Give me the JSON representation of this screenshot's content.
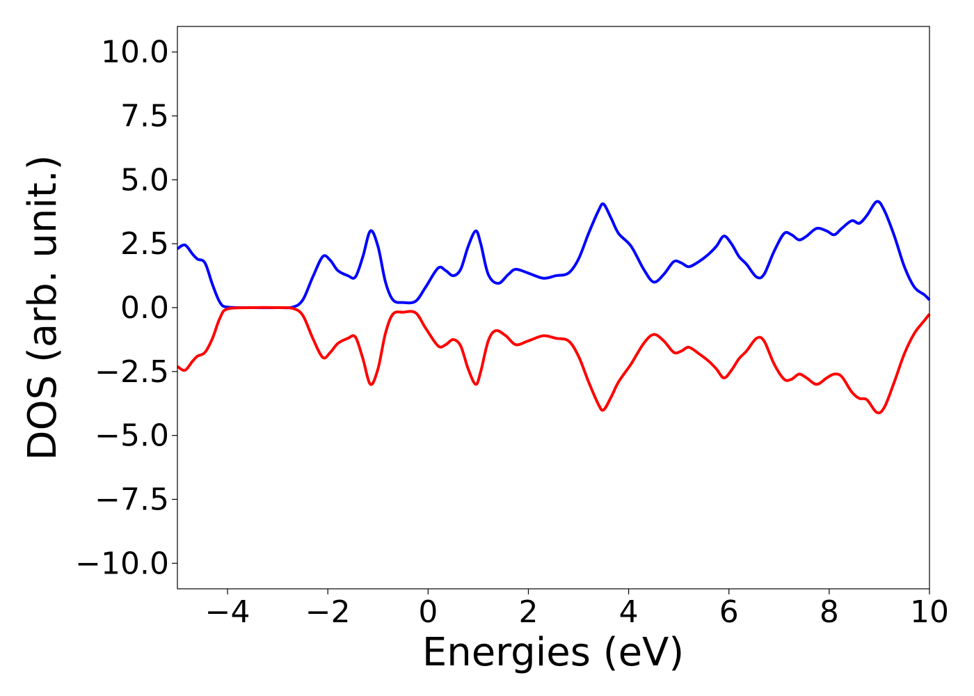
{
  "chart_data": {
    "type": "line",
    "title": "",
    "xlabel": "Energies (eV)",
    "ylabel": "DOS (arb. unit.)",
    "xlim": [
      -5,
      10
    ],
    "ylim": [
      -11,
      11
    ],
    "grid": false,
    "x_ticks": [
      -4,
      -2,
      0,
      2,
      4,
      6,
      8,
      10
    ],
    "x_tick_labels": [
      "−4",
      "−2",
      "0",
      "2",
      "4",
      "6",
      "8",
      "10"
    ],
    "y_ticks": [
      10,
      7.5,
      5,
      2.5,
      0,
      -2.5,
      -5,
      -7.5,
      -10
    ],
    "y_tick_labels": [
      "10.0",
      "7.5",
      "5.0",
      "2.5",
      "0.0",
      "−2.5",
      "−5.0",
      "−7.5",
      "−10.0"
    ],
    "series": [
      {
        "color": "#0000ff",
        "points": [
          [
            -5.0,
            2.3
          ],
          [
            -4.85,
            2.45
          ],
          [
            -4.7,
            2.1
          ],
          [
            -4.6,
            1.9
          ],
          [
            -4.45,
            1.75
          ],
          [
            -4.3,
            0.9
          ],
          [
            -4.15,
            0.2
          ],
          [
            -4.0,
            0.02
          ],
          [
            -3.5,
            0.0
          ],
          [
            -3.0,
            0.0
          ],
          [
            -2.7,
            0.02
          ],
          [
            -2.5,
            0.3
          ],
          [
            -2.3,
            1.2
          ],
          [
            -2.1,
            2.0
          ],
          [
            -1.95,
            1.85
          ],
          [
            -1.8,
            1.45
          ],
          [
            -1.6,
            1.25
          ],
          [
            -1.45,
            1.2
          ],
          [
            -1.3,
            2.0
          ],
          [
            -1.15,
            3.0
          ],
          [
            -1.0,
            2.4
          ],
          [
            -0.85,
            1.0
          ],
          [
            -0.7,
            0.3
          ],
          [
            -0.5,
            0.2
          ],
          [
            -0.25,
            0.25
          ],
          [
            -0.05,
            0.8
          ],
          [
            0.2,
            1.55
          ],
          [
            0.35,
            1.45
          ],
          [
            0.5,
            1.25
          ],
          [
            0.65,
            1.5
          ],
          [
            0.8,
            2.4
          ],
          [
            0.95,
            3.0
          ],
          [
            1.05,
            2.5
          ],
          [
            1.2,
            1.3
          ],
          [
            1.4,
            0.95
          ],
          [
            1.6,
            1.3
          ],
          [
            1.75,
            1.5
          ],
          [
            2.0,
            1.35
          ],
          [
            2.3,
            1.15
          ],
          [
            2.55,
            1.25
          ],
          [
            2.8,
            1.35
          ],
          [
            3.0,
            1.9
          ],
          [
            3.2,
            2.9
          ],
          [
            3.4,
            3.8
          ],
          [
            3.5,
            4.05
          ],
          [
            3.65,
            3.5
          ],
          [
            3.8,
            2.9
          ],
          [
            4.05,
            2.4
          ],
          [
            4.3,
            1.5
          ],
          [
            4.5,
            1.0
          ],
          [
            4.7,
            1.3
          ],
          [
            4.9,
            1.8
          ],
          [
            5.05,
            1.75
          ],
          [
            5.2,
            1.6
          ],
          [
            5.4,
            1.8
          ],
          [
            5.6,
            2.1
          ],
          [
            5.75,
            2.4
          ],
          [
            5.9,
            2.8
          ],
          [
            6.05,
            2.5
          ],
          [
            6.2,
            2.0
          ],
          [
            6.35,
            1.7
          ],
          [
            6.55,
            1.2
          ],
          [
            6.7,
            1.3
          ],
          [
            6.9,
            2.2
          ],
          [
            7.1,
            2.9
          ],
          [
            7.25,
            2.85
          ],
          [
            7.4,
            2.65
          ],
          [
            7.55,
            2.8
          ],
          [
            7.75,
            3.1
          ],
          [
            7.95,
            3.0
          ],
          [
            8.1,
            2.85
          ],
          [
            8.25,
            3.1
          ],
          [
            8.45,
            3.4
          ],
          [
            8.6,
            3.3
          ],
          [
            8.75,
            3.6
          ],
          [
            8.95,
            4.15
          ],
          [
            9.1,
            3.8
          ],
          [
            9.3,
            2.8
          ],
          [
            9.5,
            1.6
          ],
          [
            9.7,
            0.8
          ],
          [
            9.9,
            0.5
          ],
          [
            10.0,
            0.3
          ]
        ]
      },
      {
        "color": "#ff0000",
        "points": [
          [
            -5.0,
            -2.3
          ],
          [
            -4.85,
            -2.45
          ],
          [
            -4.7,
            -2.1
          ],
          [
            -4.6,
            -1.9
          ],
          [
            -4.45,
            -1.75
          ],
          [
            -4.3,
            -1.2
          ],
          [
            -4.15,
            -0.4
          ],
          [
            -4.0,
            -0.05
          ],
          [
            -3.5,
            0.0
          ],
          [
            -3.0,
            0.0
          ],
          [
            -2.7,
            -0.03
          ],
          [
            -2.5,
            -0.3
          ],
          [
            -2.3,
            -1.2
          ],
          [
            -2.1,
            -1.95
          ],
          [
            -1.95,
            -1.75
          ],
          [
            -1.8,
            -1.4
          ],
          [
            -1.6,
            -1.2
          ],
          [
            -1.45,
            -1.15
          ],
          [
            -1.3,
            -2.0
          ],
          [
            -1.15,
            -3.0
          ],
          [
            -1.0,
            -2.4
          ],
          [
            -0.85,
            -1.0
          ],
          [
            -0.7,
            -0.25
          ],
          [
            -0.5,
            -0.18
          ],
          [
            -0.25,
            -0.2
          ],
          [
            -0.05,
            -0.8
          ],
          [
            0.2,
            -1.5
          ],
          [
            0.35,
            -1.45
          ],
          [
            0.5,
            -1.25
          ],
          [
            0.65,
            -1.5
          ],
          [
            0.8,
            -2.4
          ],
          [
            0.95,
            -3.0
          ],
          [
            1.05,
            -2.5
          ],
          [
            1.2,
            -1.3
          ],
          [
            1.35,
            -0.9
          ],
          [
            1.55,
            -1.1
          ],
          [
            1.75,
            -1.45
          ],
          [
            2.0,
            -1.3
          ],
          [
            2.3,
            -1.1
          ],
          [
            2.55,
            -1.2
          ],
          [
            2.8,
            -1.3
          ],
          [
            3.0,
            -1.9
          ],
          [
            3.2,
            -2.9
          ],
          [
            3.4,
            -3.8
          ],
          [
            3.5,
            -4.0
          ],
          [
            3.65,
            -3.5
          ],
          [
            3.8,
            -2.9
          ],
          [
            4.05,
            -2.2
          ],
          [
            4.3,
            -1.4
          ],
          [
            4.5,
            -1.05
          ],
          [
            4.7,
            -1.3
          ],
          [
            4.9,
            -1.75
          ],
          [
            5.05,
            -1.7
          ],
          [
            5.2,
            -1.55
          ],
          [
            5.4,
            -1.8
          ],
          [
            5.6,
            -2.1
          ],
          [
            5.75,
            -2.4
          ],
          [
            5.9,
            -2.75
          ],
          [
            6.05,
            -2.45
          ],
          [
            6.2,
            -2.0
          ],
          [
            6.35,
            -1.7
          ],
          [
            6.55,
            -1.2
          ],
          [
            6.7,
            -1.3
          ],
          [
            6.9,
            -2.2
          ],
          [
            7.1,
            -2.8
          ],
          [
            7.25,
            -2.8
          ],
          [
            7.4,
            -2.6
          ],
          [
            7.55,
            -2.75
          ],
          [
            7.75,
            -3.0
          ],
          [
            7.95,
            -2.75
          ],
          [
            8.1,
            -2.6
          ],
          [
            8.25,
            -2.7
          ],
          [
            8.45,
            -3.3
          ],
          [
            8.6,
            -3.55
          ],
          [
            8.75,
            -3.6
          ],
          [
            8.95,
            -4.1
          ],
          [
            9.1,
            -3.9
          ],
          [
            9.3,
            -2.9
          ],
          [
            9.5,
            -1.8
          ],
          [
            9.7,
            -1.0
          ],
          [
            9.9,
            -0.5
          ],
          [
            10.0,
            -0.25
          ]
        ]
      }
    ]
  }
}
